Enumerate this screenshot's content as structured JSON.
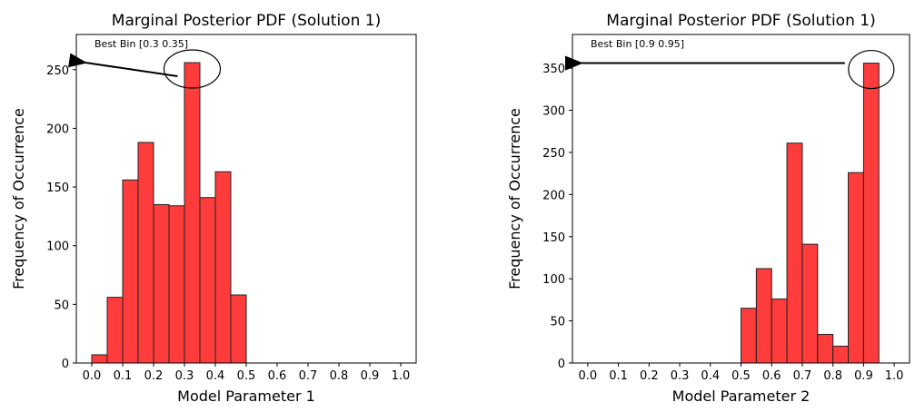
{
  "chart_data": [
    {
      "type": "bar",
      "title": "Marginal Posterior PDF (Solution 1)",
      "xlabel": "Model Parameter 1",
      "ylabel": "Frequency of Occurrence",
      "xlim": [
        -0.05,
        1.05
      ],
      "ylim": [
        0,
        280
      ],
      "xticks": [
        "0.0",
        "0.1",
        "0.2",
        "0.3",
        "0.4",
        "0.5",
        "0.6",
        "0.7",
        "0.8",
        "0.9",
        "1.0"
      ],
      "yticks": [
        "0",
        "50",
        "100",
        "150",
        "200",
        "250"
      ],
      "bin_width": 0.05,
      "bin_starts": [
        0.0,
        0.05,
        0.1,
        0.15,
        0.2,
        0.25,
        0.3,
        0.35,
        0.4,
        0.45
      ],
      "values": [
        7,
        56,
        156,
        188,
        135,
        134,
        256,
        141,
        163,
        58
      ],
      "annotation": "Best Bin [0.3 0.35]",
      "highlight_bin": 6,
      "arrow_to_y": 256,
      "color": "#ff3c3c"
    },
    {
      "type": "bar",
      "title": "Marginal Posterior PDF (Solution 1)",
      "xlabel": "Model Parameter 2",
      "ylabel": "Frequency of Occurrence",
      "xlim": [
        -0.05,
        1.05
      ],
      "ylim": [
        0,
        390
      ],
      "xticks": [
        "0.0",
        "0.1",
        "0.2",
        "0.3",
        "0.4",
        "0.5",
        "0.6",
        "0.7",
        "0.8",
        "0.9",
        "1.0"
      ],
      "yticks": [
        "0",
        "50",
        "100",
        "150",
        "200",
        "250",
        "300",
        "350"
      ],
      "bin_width": 0.05,
      "bin_starts": [
        0.5,
        0.55,
        0.6,
        0.65,
        0.7,
        0.75,
        0.8,
        0.85,
        0.9
      ],
      "values": [
        65,
        112,
        76,
        261,
        141,
        34,
        20,
        226,
        356
      ],
      "annotation": "Best Bin [0.9 0.95]",
      "highlight_bin": 8,
      "arrow_to_y": 356,
      "color": "#ff3c3c"
    }
  ]
}
